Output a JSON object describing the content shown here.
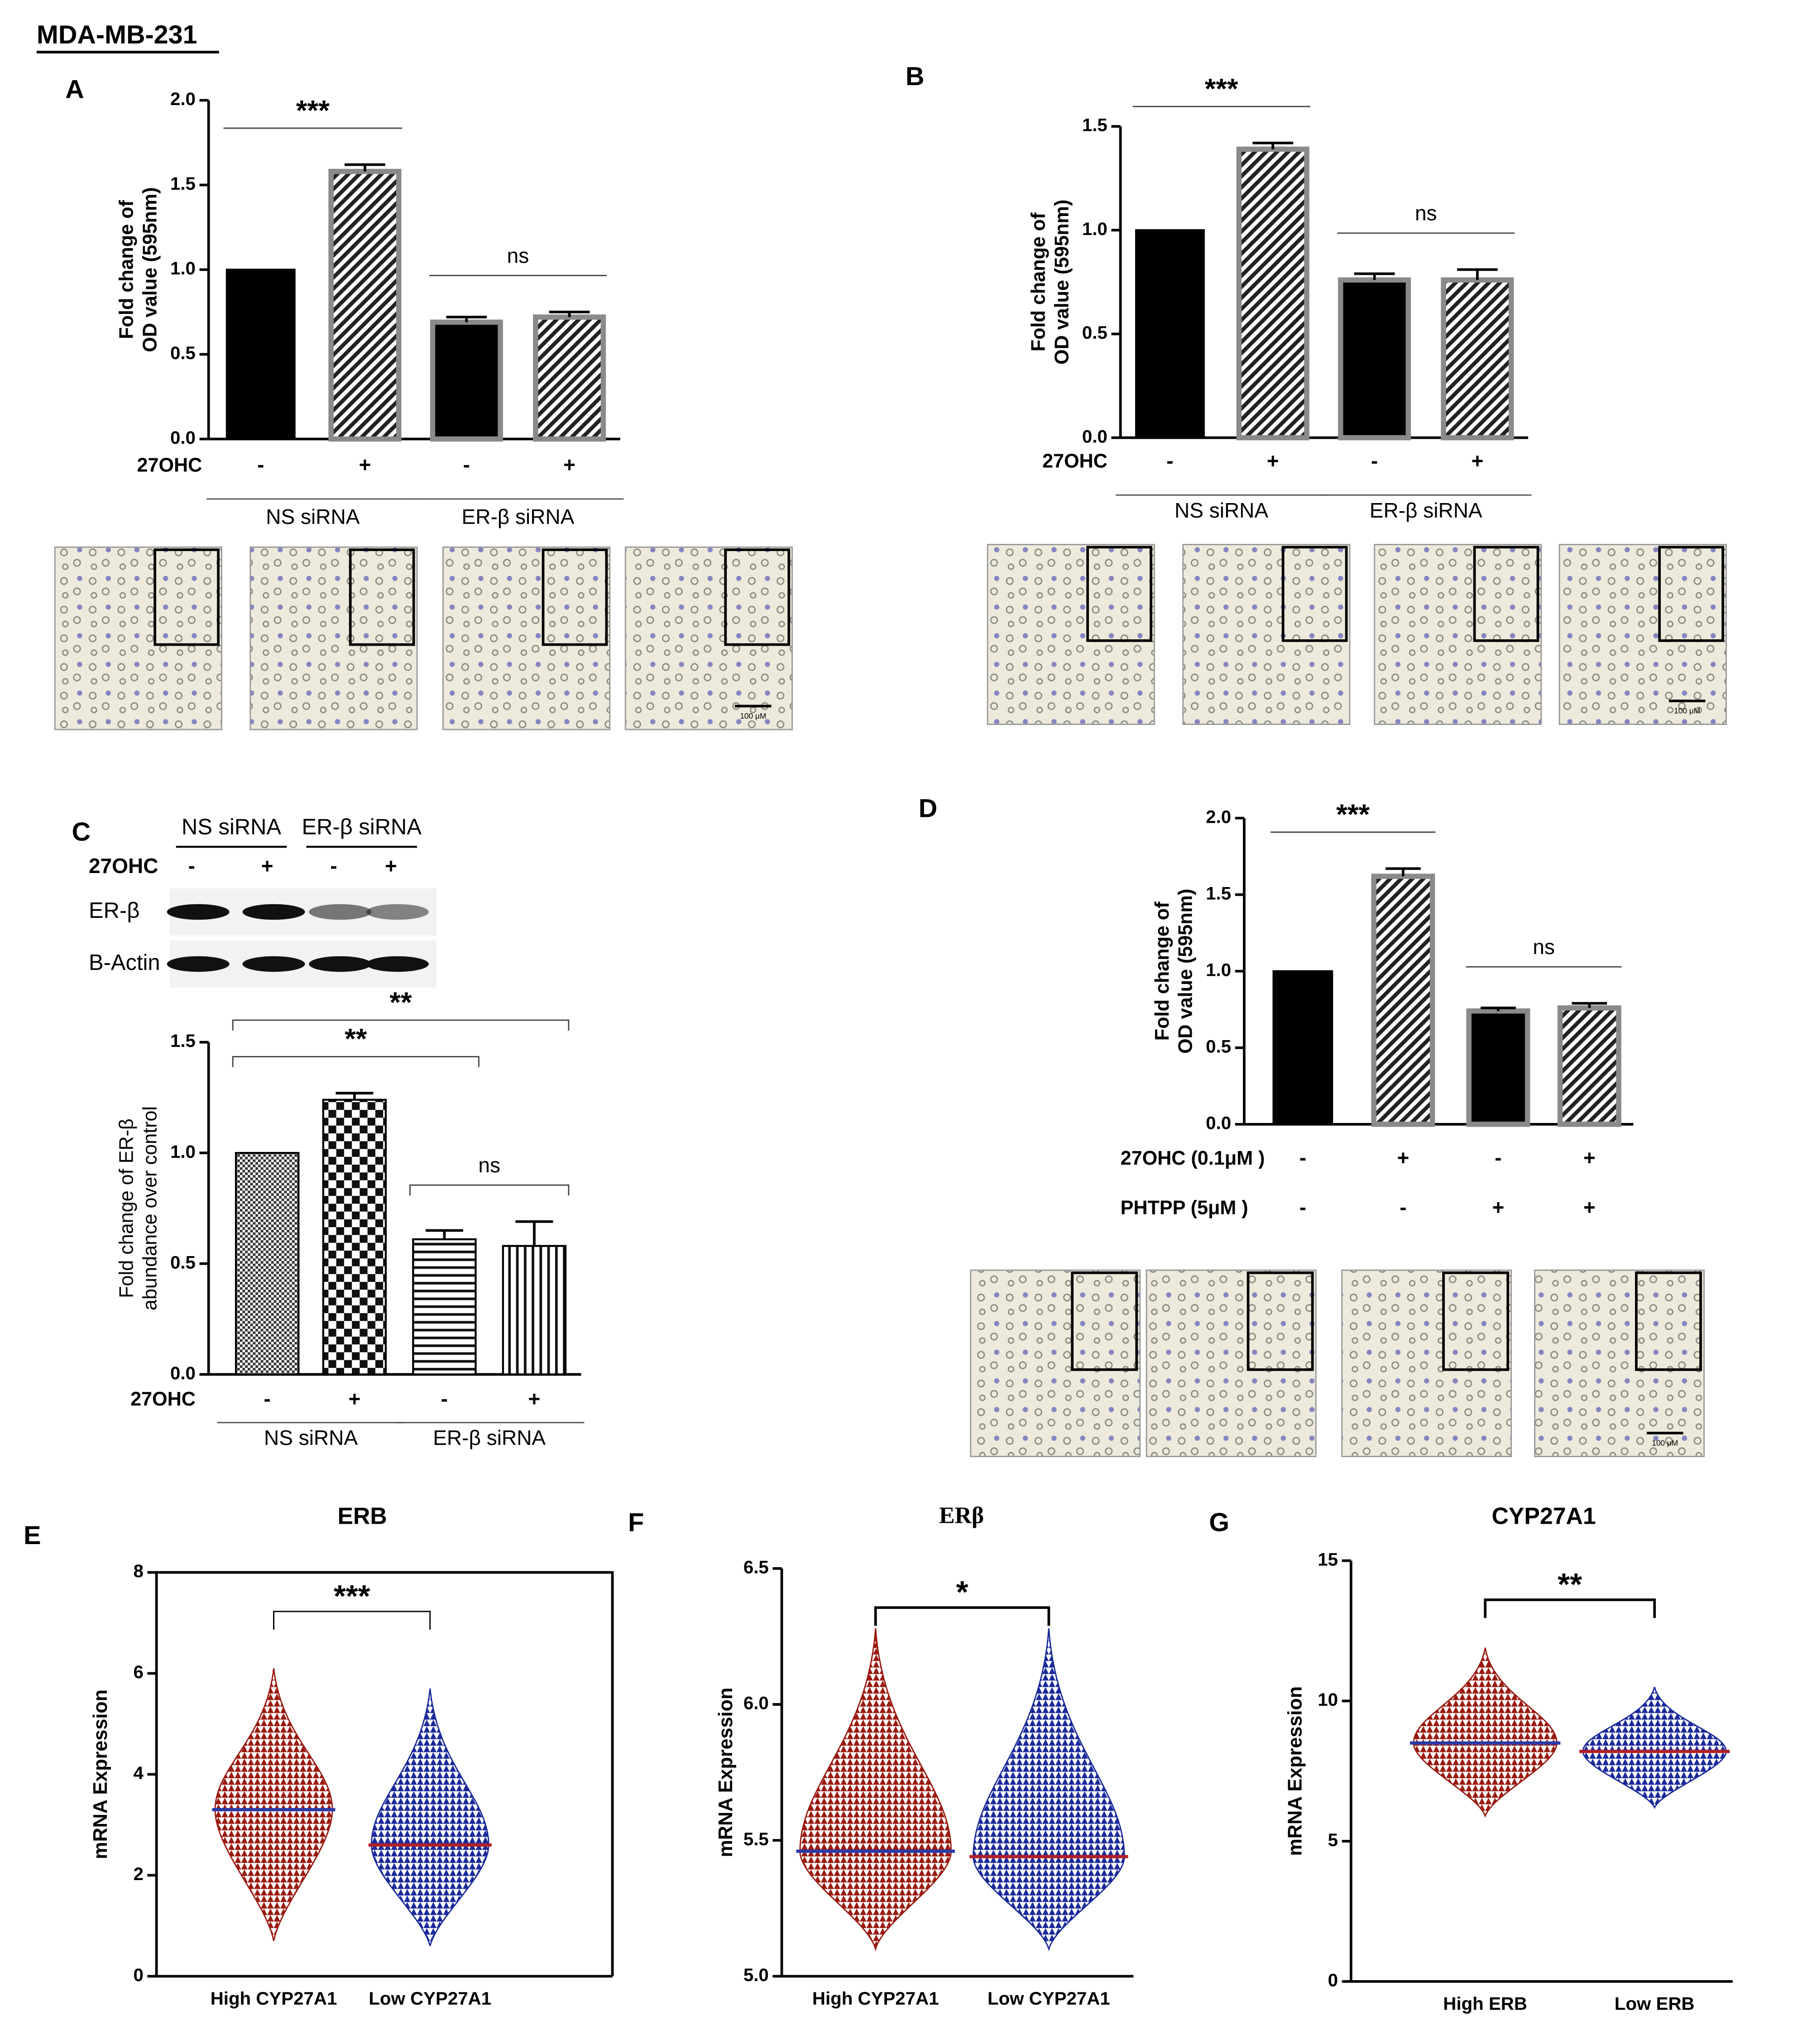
{
  "header": "MDA-MB-231",
  "chart_data": [
    {
      "type": "bar",
      "panel": "A",
      "ylabel": [
        "Fold change of",
        "OD value  (595nm)"
      ],
      "values": [
        1.0,
        1.58,
        0.69,
        0.72
      ],
      "errors": [
        null,
        0.04,
        0.03,
        0.03
      ],
      "patterns": [
        "solid",
        "hatch",
        "solid",
        "hatch"
      ],
      "ylim": [
        0,
        2
      ],
      "yticks": [
        {
          "value": 0,
          "label": "0.0"
        },
        {
          "value": 0.5,
          "label": "0.5"
        },
        {
          "value": 1,
          "label": "1.0"
        },
        {
          "value": 1.5,
          "label": "1.5"
        },
        {
          "value": 2,
          "label": "2.0"
        }
      ],
      "rows": [
        {
          "name": "27OHC",
          "signs": [
            "-",
            "+",
            "-",
            "+"
          ]
        }
      ],
      "groups": [
        {
          "name": "NS siRNA",
          "span": [
            0,
            1
          ]
        },
        {
          "name": "ER-β siRNA",
          "span": [
            2,
            3
          ]
        }
      ],
      "significance": [
        {
          "label": "***",
          "span": [
            0,
            1
          ]
        },
        {
          "label": "ns",
          "span": [
            2,
            3
          ]
        }
      ],
      "scale_bar_label": "100 μM"
    },
    {
      "type": "bar",
      "panel": "B",
      "ylabel": [
        "Fold change of",
        "OD value (595nm)"
      ],
      "values": [
        1.0,
        1.39,
        0.76,
        0.76
      ],
      "errors": [
        null,
        0.03,
        0.03,
        0.05
      ],
      "patterns": [
        "solid",
        "hatch",
        "solid",
        "hatch"
      ],
      "ylim": [
        0,
        1.5
      ],
      "yticks": [
        {
          "value": 0,
          "label": "0.0"
        },
        {
          "value": 0.5,
          "label": "0.5"
        },
        {
          "value": 1,
          "label": "1.0"
        },
        {
          "value": 1.5,
          "label": "1.5"
        }
      ],
      "rows": [
        {
          "name": "27OHC",
          "signs": [
            "-",
            "+",
            "-",
            "+"
          ]
        }
      ],
      "groups": [
        {
          "name": "NS siRNA",
          "span": [
            0,
            1
          ]
        },
        {
          "name": "ER-β siRNA",
          "span": [
            2,
            3
          ]
        }
      ],
      "significance": [
        {
          "label": "***",
          "span": [
            0,
            1
          ]
        },
        {
          "label": "ns",
          "span": [
            2,
            3
          ]
        }
      ],
      "scale_bar_label": "100 μM"
    },
    {
      "type": "bar",
      "panel": "C",
      "ylabel": [
        "Fold change of ER-β",
        "abundance over control"
      ],
      "values": [
        1.0,
        1.24,
        0.61,
        0.58
      ],
      "errors": [
        null,
        0.03,
        0.04,
        0.11
      ],
      "patterns": [
        "finecheck",
        "check",
        "hstripe",
        "vstripe"
      ],
      "ylim": [
        0,
        1.5
      ],
      "yticks": [
        {
          "value": 0,
          "label": "0.0"
        },
        {
          "value": 0.5,
          "label": "0.5"
        },
        {
          "value": 1,
          "label": "1.0"
        },
        {
          "value": 1.5,
          "label": "1.5"
        }
      ],
      "rows": [
        {
          "name": "27OHC",
          "signs": [
            "-",
            "+",
            "-",
            "+"
          ]
        }
      ],
      "groups": [
        {
          "name": "NS siRNA",
          "span": [
            0,
            1
          ]
        },
        {
          "name": "ER-β siRNA",
          "span": [
            2,
            3
          ]
        }
      ],
      "significance": [
        {
          "label": "**",
          "span": [
            0,
            2
          ]
        },
        {
          "label": "**",
          "span": [
            0,
            3
          ]
        },
        {
          "label": "ns",
          "span": [
            2,
            3
          ]
        }
      ],
      "blot": {
        "groups": [
          "NS siRNA",
          "ER-β siRNA"
        ],
        "treatment": "27OHC",
        "signs": [
          "-",
          "+",
          "-",
          "+"
        ],
        "bands": [
          "ER-β",
          "B-Actin"
        ]
      }
    },
    {
      "type": "bar",
      "panel": "D",
      "ylabel": [
        "Fold change of",
        "OD value (595nm)"
      ],
      "values": [
        1.0,
        1.62,
        0.74,
        0.76
      ],
      "errors": [
        null,
        0.05,
        0.02,
        0.03
      ],
      "patterns": [
        "solid",
        "hatch",
        "solid",
        "hatch"
      ],
      "ylim": [
        0,
        2
      ],
      "yticks": [
        {
          "value": 0,
          "label": "0.0"
        },
        {
          "value": 0.5,
          "label": "0.5"
        },
        {
          "value": 1,
          "label": "1.0"
        },
        {
          "value": 1.5,
          "label": "1.5"
        },
        {
          "value": 2,
          "label": "2.0"
        }
      ],
      "rows": [
        {
          "name": "27OHC (0.1μM )",
          "signs": [
            "-",
            "+",
            "-",
            "+"
          ]
        },
        {
          "name": "PHTPP (5μM )",
          "signs": [
            "-",
            "-",
            "+",
            "+"
          ]
        }
      ],
      "groups": [],
      "significance": [
        {
          "label": "***",
          "span": [
            0,
            1
          ]
        },
        {
          "label": "ns",
          "span": [
            2,
            3
          ]
        }
      ],
      "scale_bar_label": "100 μM"
    },
    {
      "type": "dot",
      "panel": "E",
      "title": "ERB",
      "ylabel": "mRNA Expression",
      "frame": true,
      "ylim": [
        0,
        8
      ],
      "yticks": [
        0,
        2,
        4,
        6,
        8
      ],
      "groups": [
        {
          "name": "High CYP27A1",
          "color": "#9a1a10",
          "mean_color": "#2a3aa8",
          "mean": 3.3,
          "min": 0.7,
          "max": 6.1
        },
        {
          "name": "Low CYP27A1",
          "color": "#1a2a9b",
          "mean_color": "#b0202a",
          "mean": 2.6,
          "min": 0.6,
          "max": 5.7
        }
      ],
      "significance": {
        "label": "***"
      }
    },
    {
      "type": "dot",
      "panel": "F",
      "title": "ERβ",
      "ylabel": "mRNA Expression",
      "frame": false,
      "ylim": [
        5,
        6.5
      ],
      "yticks": [
        {
          "value": 5,
          "label": "5.0"
        },
        {
          "value": 5.5,
          "label": "5.5"
        },
        {
          "value": 6,
          "label": "6.0"
        },
        {
          "value": 6.5,
          "label": "6.5"
        }
      ],
      "groups": [
        {
          "name": "High CYP27A1",
          "color": "#9a1a10",
          "mean_color": "#2a3aa8",
          "mean": 5.46,
          "min": 5.1,
          "max": 6.28
        },
        {
          "name": "Low CYP27A1",
          "color": "#1a2a9b",
          "mean_color": "#b0202a",
          "mean": 5.44,
          "min": 5.1,
          "max": 6.28
        }
      ],
      "significance": {
        "label": "*"
      }
    },
    {
      "type": "dot",
      "panel": "G",
      "title": "CYP27A1",
      "ylabel": "mRNA Expression",
      "frame": false,
      "ylim": [
        0,
        15
      ],
      "yticks": [
        0,
        5,
        10,
        15
      ],
      "groups": [
        {
          "name": "High ERB",
          "color": "#9a1a10",
          "mean_color": "#2a3aa8",
          "mean": 8.5,
          "min": 5.9,
          "max": 11.9
        },
        {
          "name": "Low ERB",
          "color": "#1a2a9b",
          "mean_color": "#b0202a",
          "mean": 8.2,
          "min": 6.2,
          "max": 10.5
        }
      ],
      "significance": {
        "label": "**"
      }
    }
  ]
}
